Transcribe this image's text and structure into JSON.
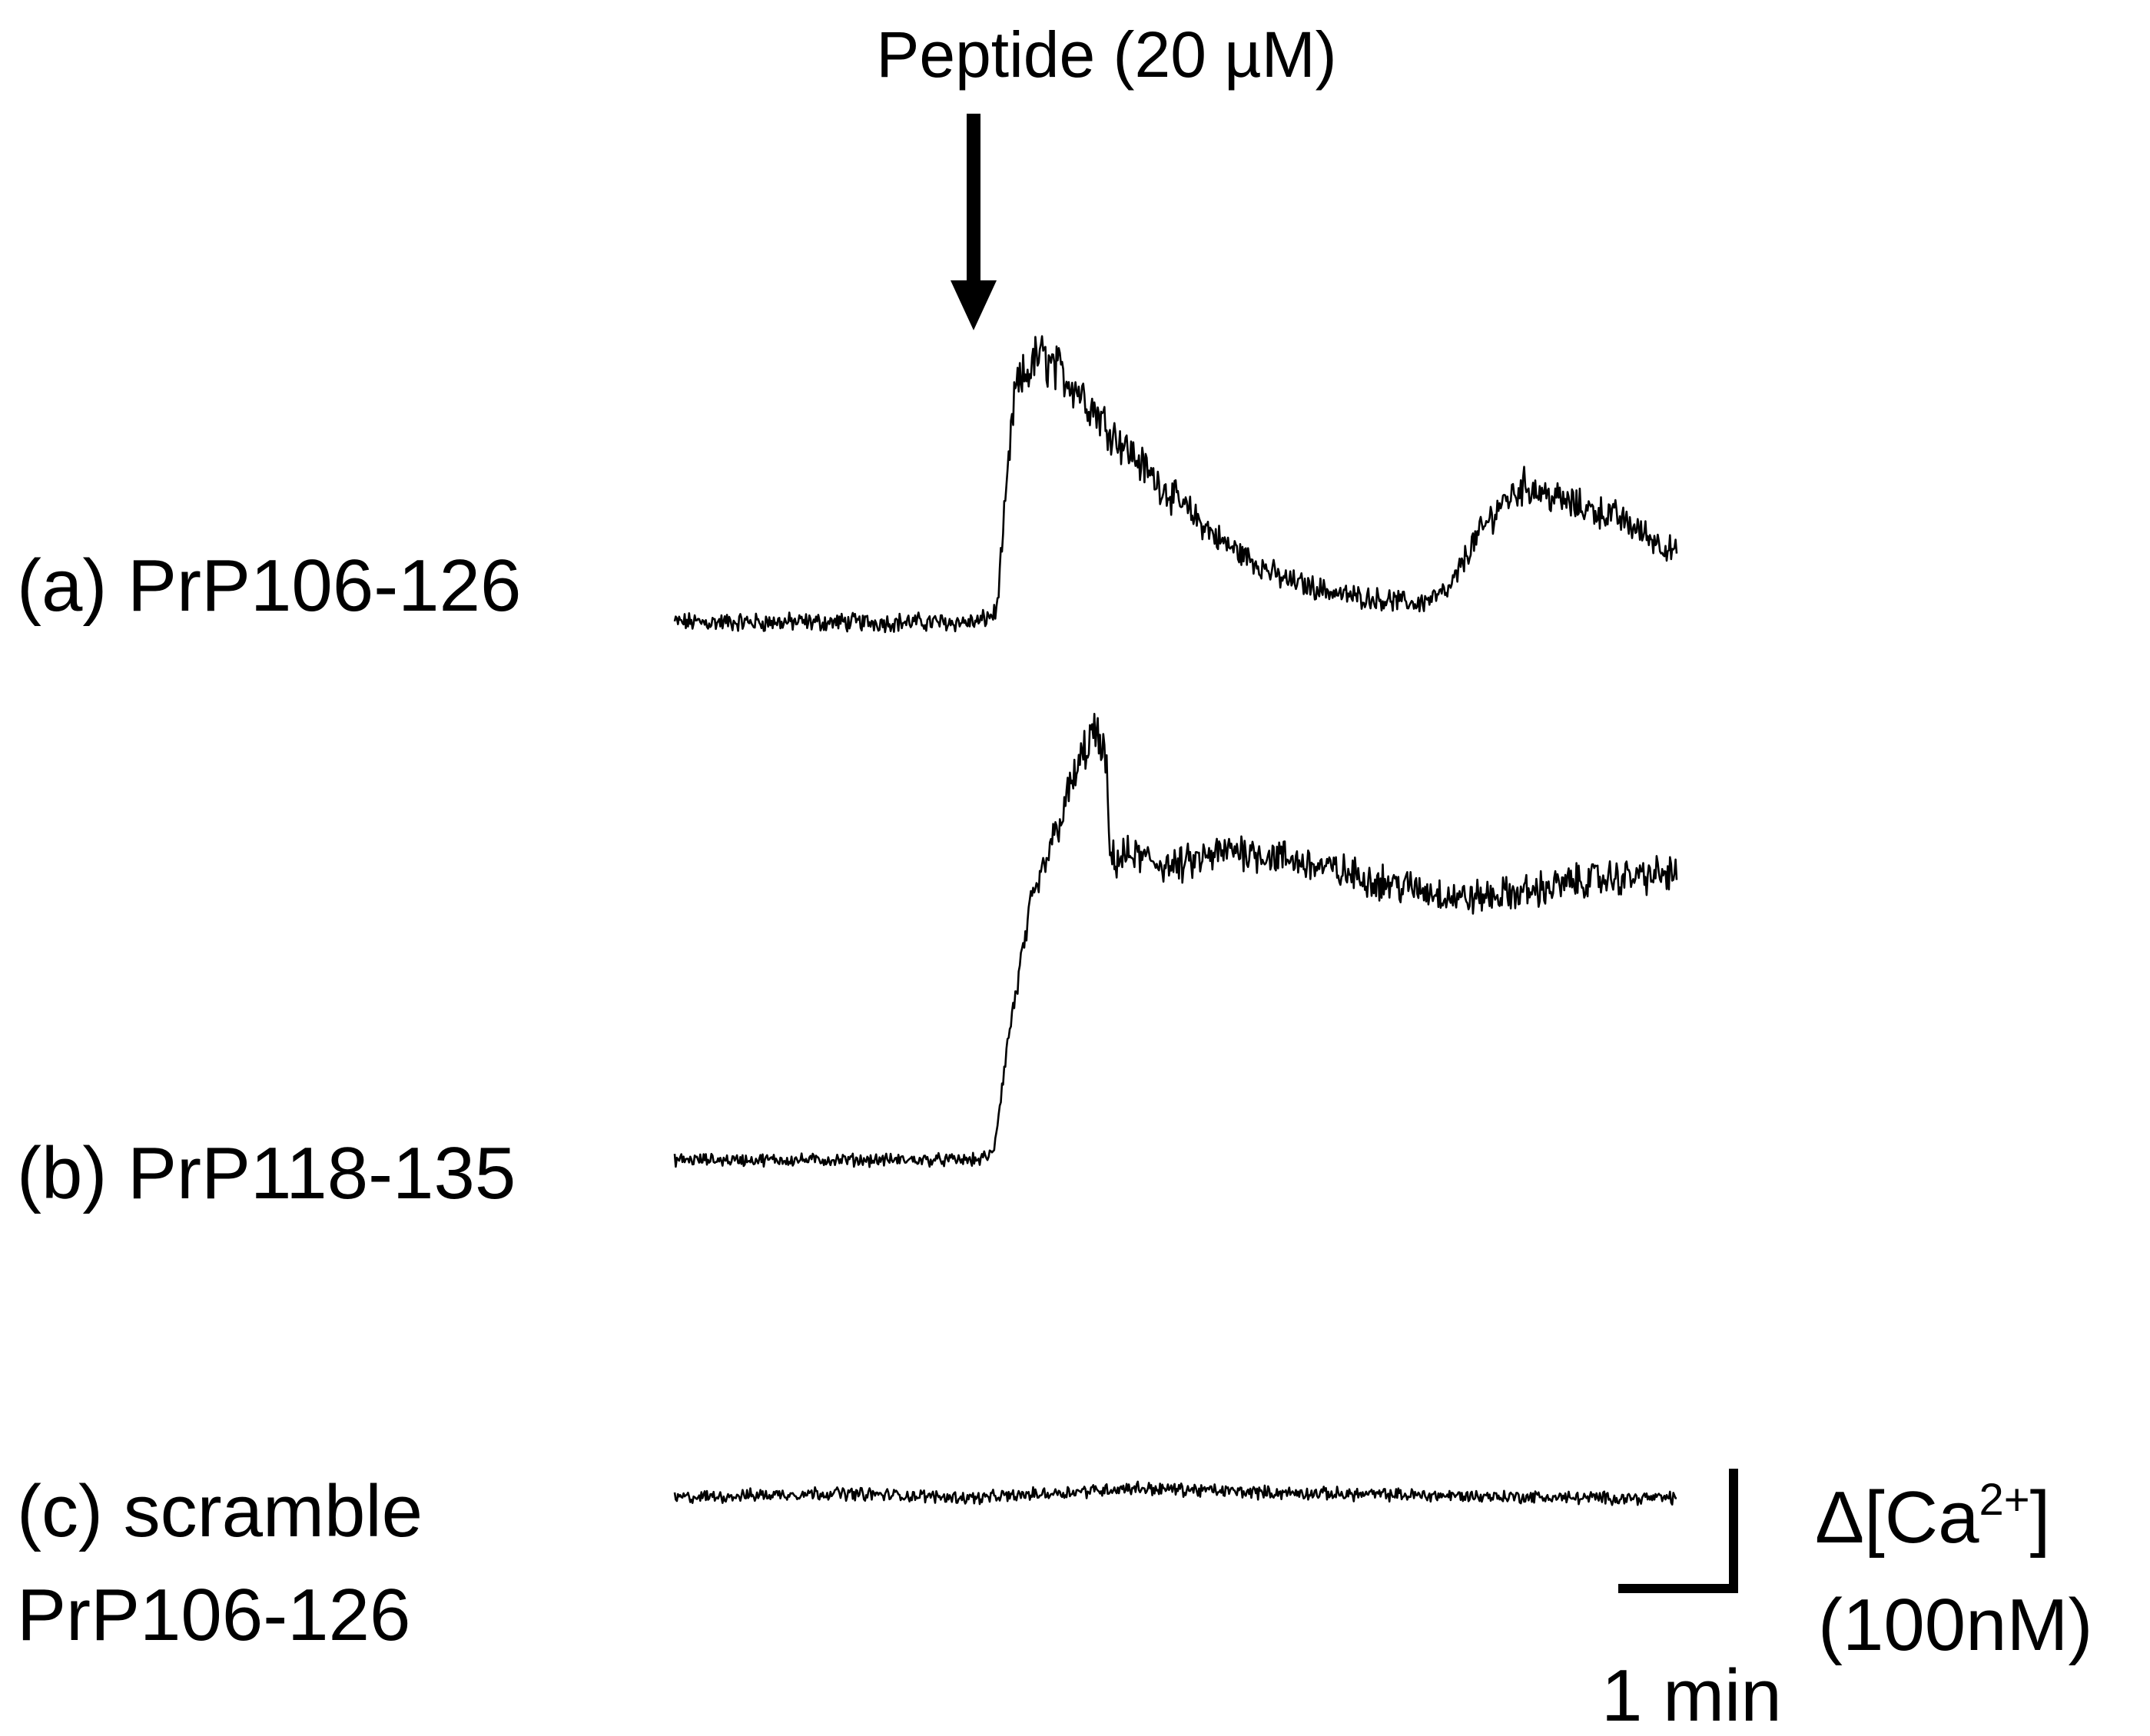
{
  "chart_data": {
    "type": "line",
    "annotation": {
      "label": "Peptide (20 µM)",
      "x": 0.98
    },
    "scale_bar": {
      "time_label": "1 min",
      "time_value": 1,
      "amplitude_label_line1": "Δ[Ca",
      "amplitude_label_sup": "2+",
      "amplitude_label_close": "]",
      "amplitude_label_line2": "(100nM)",
      "amplitude_value": 100
    },
    "x_range": [
      0,
      3.3
    ],
    "series": [
      {
        "name": "(a) PrP106-126",
        "label_lines": [
          "(a) PrP106-126"
        ],
        "baseline": 0,
        "noise": 6,
        "keyframes": [
          [
            0,
            0
          ],
          [
            1.0,
            0
          ],
          [
            1.06,
            8
          ],
          [
            1.12,
            185
          ],
          [
            1.2,
            215
          ],
          [
            1.32,
            190
          ],
          [
            1.45,
            150
          ],
          [
            1.6,
            110
          ],
          [
            1.8,
            65
          ],
          [
            2.0,
            35
          ],
          [
            2.2,
            22
          ],
          [
            2.45,
            15
          ],
          [
            2.55,
            25
          ],
          [
            2.62,
            60
          ],
          [
            2.72,
            95
          ],
          [
            2.8,
            110
          ],
          [
            2.95,
            95
          ],
          [
            3.1,
            85
          ],
          [
            3.3,
            55
          ]
        ]
      },
      {
        "name": "(b) PrP118-135",
        "label_lines": [
          "(b) PrP118-135"
        ],
        "baseline": 0,
        "noise": 4,
        "keyframes": [
          [
            0,
            0
          ],
          [
            1.0,
            0
          ],
          [
            1.05,
            5
          ],
          [
            1.1,
            100
          ],
          [
            1.17,
            200
          ],
          [
            1.25,
            260
          ],
          [
            1.32,
            310
          ],
          [
            1.38,
            345
          ],
          [
            1.42,
            320
          ],
          [
            1.435,
            240
          ],
          [
            1.5,
            245
          ],
          [
            1.65,
            235
          ],
          [
            1.85,
            250
          ],
          [
            2.05,
            240
          ],
          [
            2.3,
            225
          ],
          [
            2.6,
            210
          ],
          [
            2.8,
            215
          ],
          [
            3.0,
            225
          ],
          [
            3.3,
            230
          ]
        ]
      },
      {
        "name": "(c)  scramble PrP106-126",
        "label_lines": [
          "(c)  scramble",
          "PrP106-126"
        ],
        "baseline": 0,
        "noise": 4,
        "keyframes": [
          [
            0,
            0
          ],
          [
            0.5,
            4
          ],
          [
            1.0,
            0
          ],
          [
            1.5,
            8
          ],
          [
            2.0,
            4
          ],
          [
            2.5,
            2
          ],
          [
            3.0,
            0
          ],
          [
            3.3,
            0
          ]
        ]
      }
    ]
  }
}
